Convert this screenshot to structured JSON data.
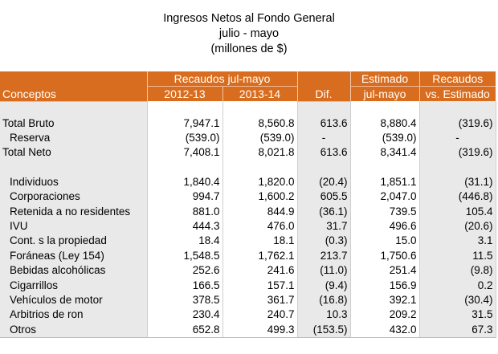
{
  "title": {
    "line1": "Ingresos Netos al Fondo General",
    "line2": "julio - mayo",
    "line3": "(millones de $)"
  },
  "header": {
    "conceptos": "Conceptos",
    "recaudos_group": "Recaudos jul-mayo",
    "year1": "2012-13",
    "year2": "2013-14",
    "dif": "Dif.",
    "estimado_line1": "Estimado",
    "estimado_line2": "jul-mayo",
    "recaudos_line1": "Recaudos",
    "recaudos_line2": "vs. Estimado"
  },
  "summary_rows": [
    {
      "label": "Total Bruto",
      "y1": "7,947.1",
      "y2": "8,560.8",
      "dif": "613.6",
      "est": "8,880.4",
      "vs": "(319.6)",
      "indent": false
    },
    {
      "label": "Reserva",
      "y1": "(539.0)",
      "y2": "(539.0)",
      "dif": "-",
      "est": "(539.0)",
      "vs": "-",
      "indent": true
    },
    {
      "label": "Total Neto",
      "y1": "7,408.1",
      "y2": "8,021.8",
      "dif": "613.6",
      "est": "8,341.4",
      "vs": "(319.6)",
      "indent": false
    }
  ],
  "detail_rows": [
    {
      "label": "Individuos",
      "y1": "1,840.4",
      "y2": "1,820.0",
      "dif": "(20.4)",
      "est": "1,851.1",
      "vs": "(31.1)"
    },
    {
      "label": "Corporaciones",
      "y1": "994.7",
      "y2": "1,600.2",
      "dif": "605.5",
      "est": "2,047.0",
      "vs": "(446.8)"
    },
    {
      "label": "Retenida a no residentes",
      "y1": "881.0",
      "y2": "844.9",
      "dif": "(36.1)",
      "est": "739.5",
      "vs": "105.4"
    },
    {
      "label": "IVU",
      "y1": "444.3",
      "y2": "476.0",
      "dif": "31.7",
      "est": "496.6",
      "vs": "(20.6)"
    },
    {
      "label": "Cont. s la propiedad",
      "y1": "18.4",
      "y2": "18.1",
      "dif": "(0.3)",
      "est": "15.0",
      "vs": "3.1"
    },
    {
      "label": "Foráneas (Ley 154)",
      "y1": "1,548.5",
      "y2": "1,762.1",
      "dif": "213.7",
      "est": "1,750.6",
      "vs": "11.5"
    },
    {
      "label": "Bebidas alcohólicas",
      "y1": "252.6",
      "y2": "241.6",
      "dif": "(11.0)",
      "est": "251.4",
      "vs": "(9.8)"
    },
    {
      "label": "Cigarrillos",
      "y1": "166.5",
      "y2": "157.1",
      "dif": "(9.4)",
      "est": "156.9",
      "vs": "0.2"
    },
    {
      "label": "Vehículos de motor",
      "y1": "378.5",
      "y2": "361.7",
      "dif": "(16.8)",
      "est": "392.1",
      "vs": "(30.4)"
    },
    {
      "label": "Arbitrios de ron",
      "y1": "230.4",
      "y2": "240.7",
      "dif": "10.3",
      "est": "209.2",
      "vs": "31.5"
    },
    {
      "label": "Otros",
      "y1": "652.8",
      "y2": "499.3",
      "dif": "(153.5)",
      "est": "432.0",
      "vs": "67.3"
    }
  ],
  "colors": {
    "header_bg": "#d96d1f",
    "header_text": "#ffffff",
    "shaded_column": "#e9e9e9"
  }
}
